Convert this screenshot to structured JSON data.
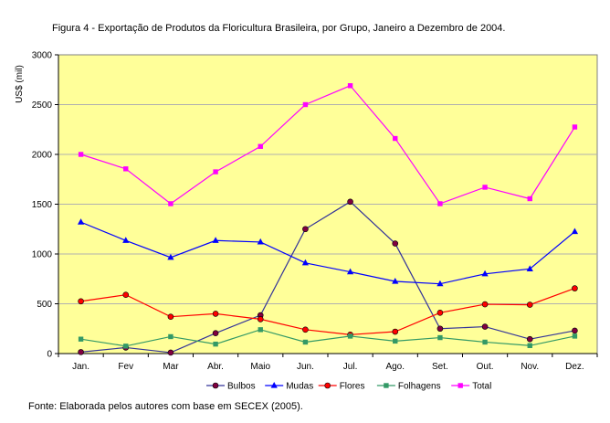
{
  "chart_data": {
    "type": "line",
    "title": "Figura 4 - Exportação de Produtos da Floricultura Brasileira, por Grupo, Janeiro a Dezembro de 2004.",
    "source": "Fonte: Elaborada pelos autores com base em SECEX (2005).",
    "xlabel": "",
    "ylabel": "US$ (mil)",
    "ylim": [
      0,
      3000
    ],
    "yticks": [
      "0",
      "500",
      "1000",
      "1500",
      "2000",
      "2500",
      "3000"
    ],
    "categories": [
      "Jan.",
      "Fev",
      "Mar",
      "Abr.",
      "Maio",
      "Jun.",
      "Jul.",
      "Ago.",
      "Set.",
      "Out.",
      "Nov.",
      "Dez."
    ],
    "grid": "horizontal",
    "legend": "bottom",
    "plot_background": "#ffff99",
    "series": [
      {
        "name": "Bulbos",
        "color": "#333399",
        "marker": "circle",
        "marker_color": "#800040",
        "values": [
          15,
          60,
          10,
          205,
          385,
          1250,
          1525,
          1105,
          250,
          270,
          145,
          230
        ]
      },
      {
        "name": "Mudas",
        "color": "#0000ff",
        "marker": "triangle",
        "marker_color": "#0000ff",
        "values": [
          1320,
          1135,
          965,
          1135,
          1120,
          910,
          820,
          725,
          700,
          800,
          850,
          1225
        ]
      },
      {
        "name": "Flores",
        "color": "#ff0000",
        "marker": "circle",
        "marker_color": "#ff0000",
        "values": [
          525,
          590,
          370,
          400,
          345,
          240,
          190,
          220,
          410,
          495,
          490,
          655
        ]
      },
      {
        "name": "Folhagens",
        "color": "#339966",
        "marker": "square",
        "marker_color": "#339966",
        "values": [
          145,
          75,
          170,
          95,
          240,
          115,
          175,
          125,
          160,
          115,
          80,
          175
        ]
      },
      {
        "name": "Total",
        "color": "#ff00ff",
        "marker": "square",
        "marker_color": "#ff00ff",
        "values": [
          2000,
          1855,
          1505,
          1825,
          2080,
          2500,
          2690,
          2160,
          1505,
          1670,
          1555,
          2275
        ]
      }
    ]
  }
}
